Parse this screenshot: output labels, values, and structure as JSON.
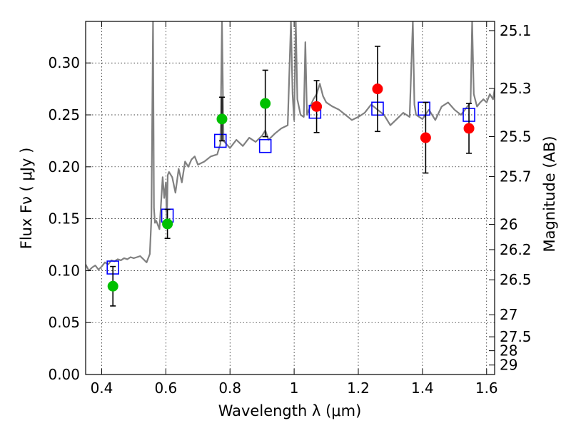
{
  "chart_data": {
    "type": "scatter",
    "title": "",
    "xlabel": "Wavelength  λ (μm)",
    "ylabel": "Flux  Fν  ( μJy )",
    "y2label": "Magnitude (AB)",
    "xlim": [
      0.35,
      1.625
    ],
    "ylim": [
      0.0,
      0.34
    ],
    "grid": true,
    "x_ticks": [
      "0.4",
      "0.6",
      "0.8",
      "1",
      "1.2",
      "1.4",
      "1.6"
    ],
    "x_tick_values": [
      0.4,
      0.6,
      0.8,
      1.0,
      1.2,
      1.4,
      1.6
    ],
    "y_ticks": [
      "0.00",
      "0.05",
      "0.10",
      "0.15",
      "0.20",
      "0.25",
      "0.30"
    ],
    "y_tick_values": [
      0.0,
      0.05,
      0.1,
      0.15,
      0.2,
      0.25,
      0.3
    ],
    "y2_ticks": [
      "25.1",
      "25.3",
      "25.5",
      "25.7",
      "26",
      "26.2",
      "26.5",
      "27",
      "27.5",
      "28",
      "29"
    ],
    "y2_tick_values": [
      25.1,
      25.3,
      25.5,
      25.7,
      26.0,
      26.2,
      26.5,
      27.0,
      27.5,
      28.0,
      29.0
    ],
    "series": [
      {
        "kind": "line",
        "color": "#808080",
        "x": [
          0.35,
          0.36,
          0.37,
          0.38,
          0.39,
          0.4,
          0.41,
          0.42,
          0.43,
          0.44,
          0.45,
          0.46,
          0.47,
          0.48,
          0.49,
          0.5,
          0.51,
          0.52,
          0.53,
          0.54,
          0.55,
          0.555,
          0.56,
          0.563,
          0.566,
          0.57,
          0.58,
          0.59,
          0.595,
          0.6,
          0.603,
          0.606,
          0.61,
          0.62,
          0.63,
          0.64,
          0.65,
          0.66,
          0.67,
          0.68,
          0.69,
          0.7,
          0.72,
          0.74,
          0.76,
          0.77,
          0.775,
          0.78,
          0.8,
          0.82,
          0.84,
          0.86,
          0.88,
          0.9,
          0.91,
          0.92,
          0.94,
          0.96,
          0.98,
          0.99,
          0.995,
          1.0,
          1.005,
          1.01,
          1.02,
          1.03,
          1.035,
          1.04,
          1.05,
          1.06,
          1.07,
          1.08,
          1.09,
          1.1,
          1.12,
          1.14,
          1.16,
          1.18,
          1.2,
          1.22,
          1.24,
          1.26,
          1.28,
          1.3,
          1.32,
          1.34,
          1.36,
          1.37,
          1.375,
          1.38,
          1.4,
          1.42,
          1.44,
          1.46,
          1.48,
          1.5,
          1.52,
          1.54,
          1.55,
          1.555,
          1.56,
          1.57,
          1.58,
          1.59,
          1.6,
          1.61,
          1.62,
          1.625
        ],
        "y": [
          0.106,
          0.1,
          0.103,
          0.105,
          0.101,
          0.104,
          0.108,
          0.106,
          0.11,
          0.109,
          0.111,
          0.11,
          0.112,
          0.111,
          0.113,
          0.112,
          0.113,
          0.114,
          0.111,
          0.108,
          0.116,
          0.15,
          0.34,
          0.16,
          0.146,
          0.148,
          0.14,
          0.19,
          0.17,
          0.185,
          0.145,
          0.192,
          0.195,
          0.19,
          0.175,
          0.198,
          0.185,
          0.205,
          0.2,
          0.207,
          0.21,
          0.202,
          0.205,
          0.21,
          0.212,
          0.222,
          0.34,
          0.225,
          0.218,
          0.226,
          0.22,
          0.228,
          0.224,
          0.23,
          0.235,
          0.226,
          0.232,
          0.237,
          0.24,
          0.34,
          0.27,
          0.245,
          0.34,
          0.265,
          0.25,
          0.248,
          0.32,
          0.25,
          0.258,
          0.265,
          0.27,
          0.28,
          0.268,
          0.262,
          0.258,
          0.255,
          0.25,
          0.245,
          0.248,
          0.252,
          0.26,
          0.255,
          0.25,
          0.24,
          0.246,
          0.252,
          0.248,
          0.34,
          0.26,
          0.25,
          0.246,
          0.255,
          0.245,
          0.258,
          0.262,
          0.255,
          0.25,
          0.258,
          0.262,
          0.34,
          0.27,
          0.258,
          0.262,
          0.265,
          0.262,
          0.27,
          0.265,
          0.275
        ]
      },
      {
        "kind": "marker",
        "marker": "square",
        "color": "#0000ff",
        "x": [
          0.435,
          0.605,
          0.77,
          0.91,
          1.065,
          1.26,
          1.405,
          1.545
        ],
        "y": [
          0.103,
          0.153,
          0.225,
          0.22,
          0.253,
          0.256,
          0.256,
          0.25
        ]
      },
      {
        "kind": "marker",
        "marker": "circle",
        "color": "#00c000",
        "x": [
          0.435,
          0.605,
          0.775,
          0.91
        ],
        "y": [
          0.085,
          0.145,
          0.246,
          0.261
        ],
        "yerr": [
          0.019,
          0.014,
          0.021,
          0.032
        ]
      },
      {
        "kind": "marker",
        "marker": "circle",
        "color": "#ff0000",
        "x": [
          1.07,
          1.26,
          1.41,
          1.545
        ],
        "y": [
          0.258,
          0.275,
          0.228,
          0.237
        ],
        "yerr": [
          0.025,
          0.041,
          0.034,
          0.024
        ]
      }
    ]
  }
}
